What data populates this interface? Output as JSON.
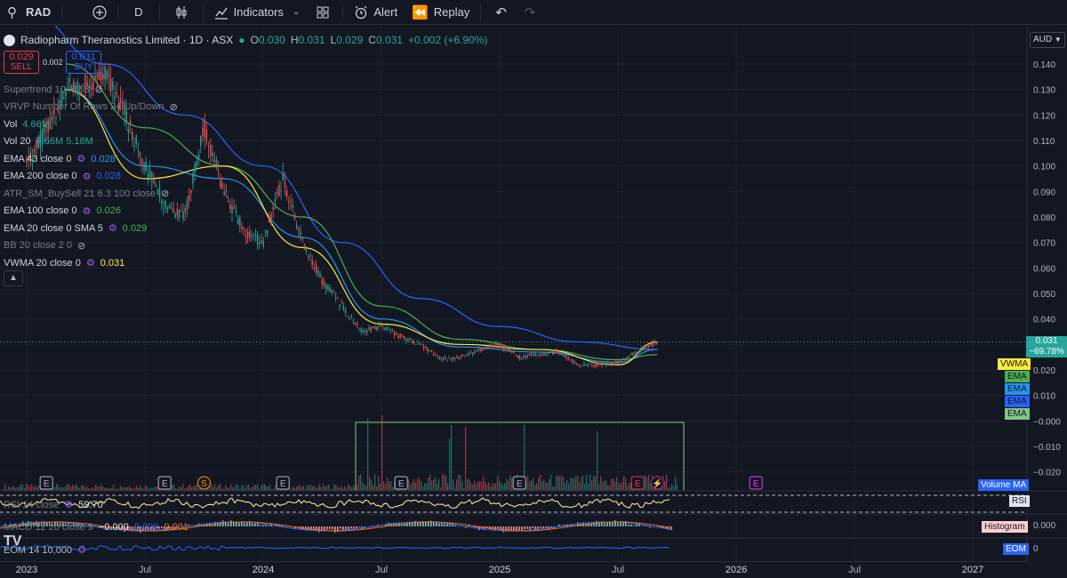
{
  "toolbar": {
    "symbol": "RAD",
    "interval": "D",
    "indicators": "Indicators",
    "alert": "Alert",
    "replay": "Replay"
  },
  "legend": {
    "title": "Radiopharm Theranostics Limited · 1D · ASX",
    "o_label": "O",
    "o": "0.030",
    "h_label": "H",
    "h": "0.031",
    "l_label": "L",
    "l": "0.029",
    "c_label": "C",
    "c": "0.031",
    "change": "+0.002 (+6.90%)"
  },
  "trade": {
    "sell_price": "0.029",
    "sell_label": "SELL",
    "spread": "0.002",
    "buy_price": "0.031",
    "buy_label": "BUY"
  },
  "indicators": [
    {
      "name": "Supertrend 10 hl2 3",
      "value": "",
      "color": "#787b86",
      "dim": true
    },
    {
      "name": "VRVP Number Of Rows 24 Up/Down",
      "value": "",
      "color": "#787b86",
      "dim": true
    },
    {
      "name": "Vol",
      "value": "4.66M",
      "color": "#26a69a",
      "dim": false
    },
    {
      "name": "Vol 20",
      "value": "4.66M  5.18M",
      "color": "#26a69a",
      "dim": false
    },
    {
      "name": "EMA 43 close 0",
      "value": "0.028",
      "color": "#2196f3",
      "dim": false
    },
    {
      "name": "EMA 200 close 0",
      "value": "0.028",
      "color": "#2962ff",
      "dim": false
    },
    {
      "name": "ATR_SM_BuySell 21 6.3 100 close",
      "value": "",
      "color": "#787b86",
      "dim": true
    },
    {
      "name": "EMA 100 close 0",
      "value": "0.026",
      "color": "#4caf50",
      "dim": false
    },
    {
      "name": "EMA 20 close 0 SMA 5",
      "value": "0.029",
      "color": "#4caf50",
      "dim": false
    },
    {
      "name": "BB 20 close 2 0",
      "value": "",
      "color": "#787b86",
      "dim": true
    },
    {
      "name": "VWMA 20 close 0",
      "value": "0.031",
      "color": "#ffeb3b",
      "dim": false
    }
  ],
  "panes": {
    "rsi_label": "RSI 14 close",
    "rsi_value": "59.70",
    "macd_label": "MACD 12 26 close 9",
    "macd_value": "−0.000",
    "macd_v2": "0.000",
    "macd_v3": "0.001",
    "eom_label": "EOM 14 10,000",
    "volume_ma_tag": "Volume MA",
    "rsi_tag": "RSI",
    "hist_tag": "Histogram",
    "eom_tag": "EOM",
    "right_000": "0.000",
    "right_0": "0"
  },
  "scale": {
    "currency": "AUD",
    "price_tag": "0.031",
    "price_tag_pct": "−69.78%",
    "ma_tags": [
      {
        "label": "VWMA",
        "color": "#ffeb3b"
      },
      {
        "label": "EMA",
        "color": "#4caf50"
      },
      {
        "label": "EMA",
        "color": "#2196f3"
      },
      {
        "label": "EMA",
        "color": "#2962ff"
      },
      {
        "label": "EMA",
        "color": "#81c784"
      }
    ]
  },
  "colors": {
    "up": "#26a69a",
    "down": "#ef5350",
    "background": "#131722",
    "grid": "#1e222d"
  },
  "chart_data": {
    "type": "line",
    "title": "Radiopharm Theranostics Limited · 1D · ASX",
    "x_tick_labels": [
      "2023",
      "Jul",
      "2024",
      "Jul",
      "2025",
      "Jul",
      "2026",
      "Jul",
      "2027"
    ],
    "y_tick_labels": [
      "0.140",
      "0.130",
      "0.120",
      "0.110",
      "0.100",
      "0.090",
      "0.080",
      "0.070",
      "0.060",
      "0.050",
      "0.040",
      "0.030",
      "0.020",
      "0.010",
      "−0.000",
      "−0.010",
      "−0.020"
    ],
    "ylim": [
      -0.025,
      0.145
    ],
    "last_price": 0.031,
    "events": [
      {
        "date": "2023-02",
        "label": "E"
      },
      {
        "date": "2023-08",
        "label": "E"
      },
      {
        "date": "2023-10",
        "label": "S"
      },
      {
        "date": "2024-02",
        "label": "E"
      },
      {
        "date": "2024-08",
        "label": "E"
      },
      {
        "date": "2025-02",
        "label": "E"
      },
      {
        "date": "2025-08",
        "label": "E"
      },
      {
        "date": "2025-09",
        "label": "⚡"
      },
      {
        "date": "2026-02",
        "label": "E"
      }
    ],
    "series": [
      {
        "name": "Price",
        "color": "#26a69a",
        "x": [
          "2023-01",
          "2023-03",
          "2023-05",
          "2023-06",
          "2023-07",
          "2023-08",
          "2023-09",
          "2023-10",
          "2023-11",
          "2023-12",
          "2024-01",
          "2024-02",
          "2024-03",
          "2024-04",
          "2024-05",
          "2024-06",
          "2024-07",
          "2024-08",
          "2024-09",
          "2024-10",
          "2024-11",
          "2024-12",
          "2025-01",
          "2025-02",
          "2025-03",
          "2025-04",
          "2025-05",
          "2025-06",
          "2025-07",
          "2025-08",
          "2025-09"
        ],
        "values": [
          0.1,
          0.13,
          0.135,
          0.12,
          0.1,
          0.085,
          0.08,
          0.115,
          0.09,
          0.075,
          0.07,
          0.095,
          0.07,
          0.055,
          0.045,
          0.035,
          0.037,
          0.033,
          0.03,
          0.024,
          0.025,
          0.028,
          0.03,
          0.025,
          0.026,
          0.027,
          0.022,
          0.022,
          0.023,
          0.027,
          0.031
        ]
      },
      {
        "name": "EMA 200",
        "color": "#2962ff",
        "x": [
          "2023-01",
          "2023-05",
          "2023-09",
          "2024-01",
          "2024-05",
          "2024-09",
          "2025-01",
          "2025-05",
          "2025-09"
        ],
        "values": [
          0.16,
          0.14,
          0.12,
          0.1,
          0.07,
          0.048,
          0.037,
          0.031,
          0.028
        ]
      },
      {
        "name": "EMA 100",
        "color": "#4caf50",
        "x": [
          "2023-03",
          "2023-07",
          "2023-11",
          "2024-03",
          "2024-07",
          "2024-11",
          "2025-03",
          "2025-07",
          "2025-09"
        ],
        "values": [
          0.14,
          0.115,
          0.1,
          0.08,
          0.045,
          0.032,
          0.028,
          0.024,
          0.026
        ]
      },
      {
        "name": "EMA 43",
        "color": "#2196f3",
        "x": [
          "2023-03",
          "2023-07",
          "2023-11",
          "2024-03",
          "2024-07",
          "2024-11",
          "2025-03",
          "2025-07",
          "2025-09"
        ],
        "values": [
          0.13,
          0.1,
          0.095,
          0.072,
          0.04,
          0.029,
          0.027,
          0.023,
          0.028
        ]
      },
      {
        "name": "VWMA 20",
        "color": "#ffeb3b",
        "x": [
          "2023-03",
          "2023-07",
          "2023-11",
          "2024-03",
          "2024-07",
          "2024-11",
          "2025-03",
          "2025-07",
          "2025-09"
        ],
        "values": [
          0.13,
          0.095,
          0.1,
          0.068,
          0.038,
          0.03,
          0.028,
          0.022,
          0.031
        ]
      }
    ]
  }
}
